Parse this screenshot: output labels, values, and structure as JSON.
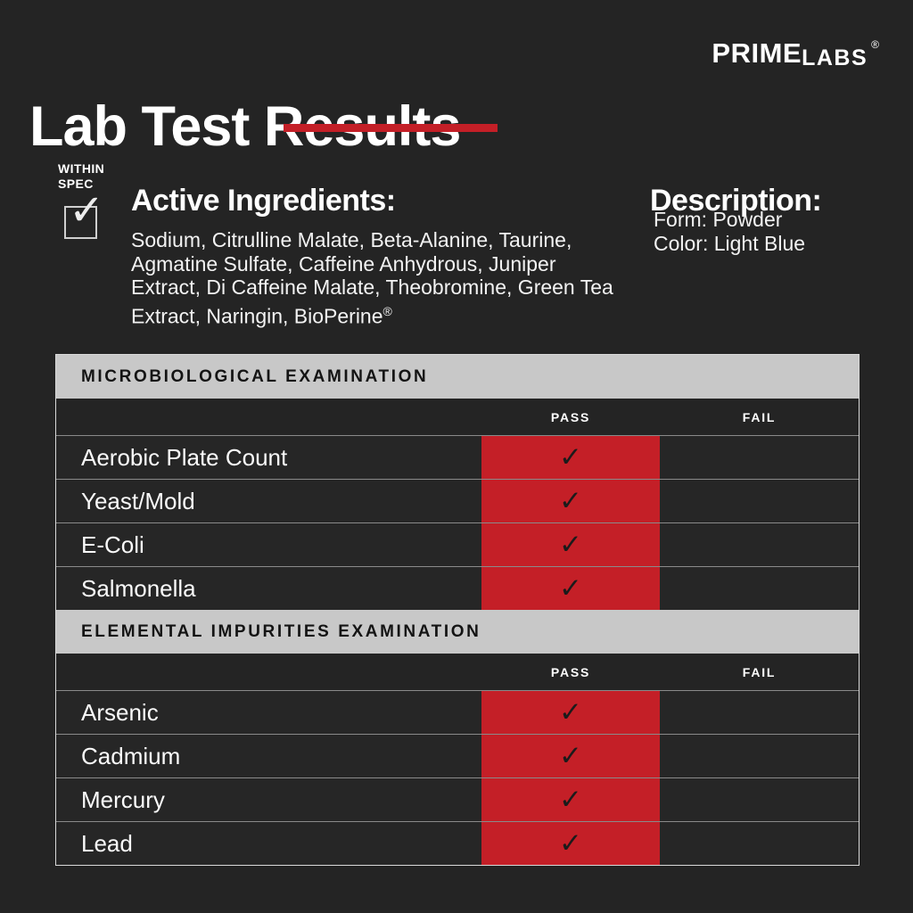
{
  "brand": {
    "name_primary": "PRIME",
    "name_secondary": "LABS",
    "registered": "®"
  },
  "title": "Lab Test Results",
  "within_spec": {
    "line1": "WITHIN",
    "line2": "SPEC"
  },
  "glyphs": {
    "check": "✓"
  },
  "active_ingredients": {
    "heading": "Active Ingredients:",
    "text": "Sodium, Citrulline Malate, Beta-Alanine, Taurine, Agmatine Sulfate, Caffeine Anhydrous, Juniper Extract, Di Caffeine Malate, Theobromine, Green Tea Extract, Naringin, BioPerine",
    "registered": "®"
  },
  "description": {
    "heading": "Description:",
    "lines": [
      "Form: Powder",
      "Color: Light Blue"
    ]
  },
  "colors": {
    "background": "#242424",
    "accent_red": "#c41f27",
    "header_gray": "#c8c8c8",
    "text_white": "#ffffff",
    "check_dark": "#1b1b1b"
  },
  "tables": [
    {
      "section_title": "MICROBIOLOGICAL EXAMINATION",
      "columns": {
        "pass": "PASS",
        "fail": "FAIL"
      },
      "rows": [
        {
          "label": "Aerobic Plate Count",
          "result": "pass"
        },
        {
          "label": "Yeast/Mold",
          "result": "pass"
        },
        {
          "label": "E-Coli",
          "result": "pass"
        },
        {
          "label": "Salmonella",
          "result": "pass"
        }
      ]
    },
    {
      "section_title": "ELEMENTAL IMPURITIES EXAMINATION",
      "columns": {
        "pass": "PASS",
        "fail": "FAIL"
      },
      "rows": [
        {
          "label": "Arsenic",
          "result": "pass"
        },
        {
          "label": "Cadmium",
          "result": "pass"
        },
        {
          "label": "Mercury",
          "result": "pass"
        },
        {
          "label": "Lead",
          "result": "pass"
        }
      ]
    }
  ]
}
